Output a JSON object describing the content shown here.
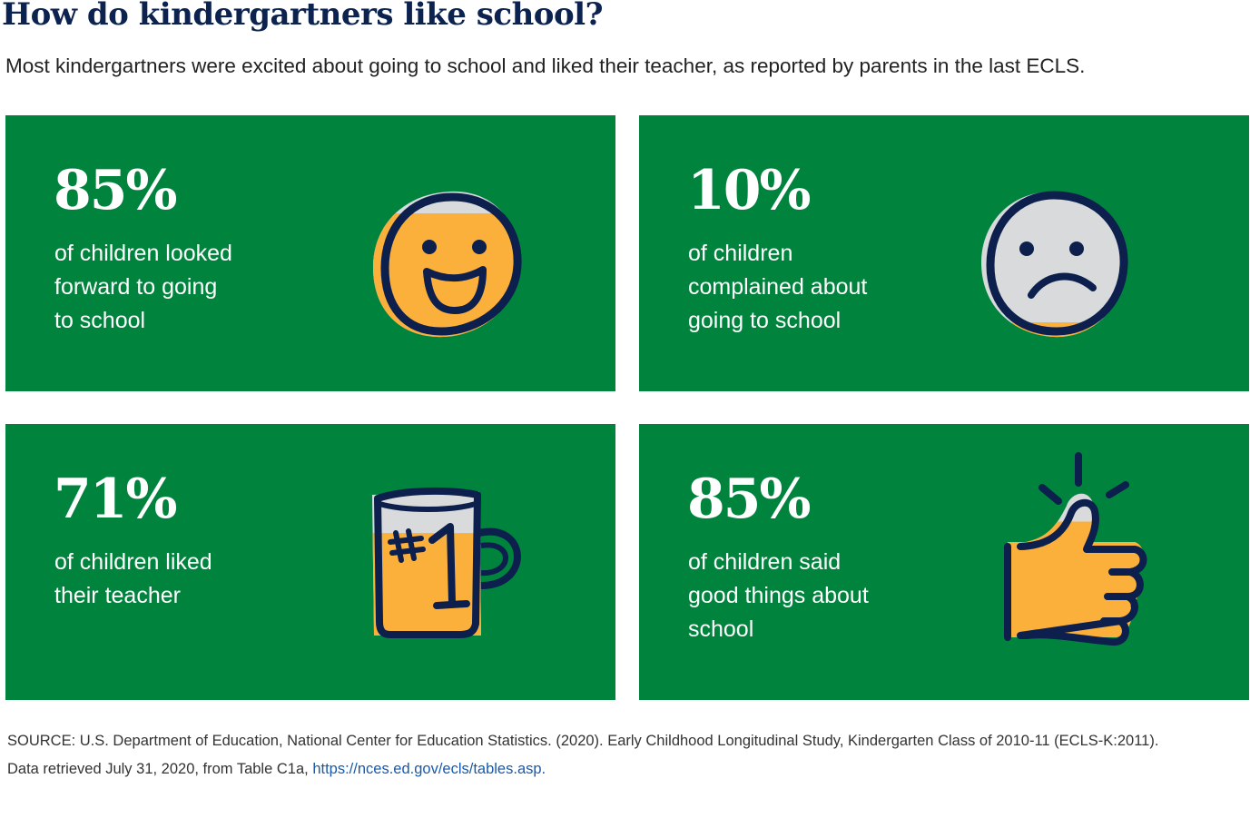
{
  "title": "How do kindergartners like school?",
  "subtitle": "Most kindergartners were excited about going to school and liked their teacher, as reported by parents in the last ECLS.",
  "colors": {
    "panel": "#00843d",
    "fill": "#fbb03b",
    "empty": "#d9dadc",
    "outline": "#0c1f4d",
    "title": "#0c2350"
  },
  "chart_data": {
    "type": "pictograph",
    "categories": [
      "of children looked forward to going to school",
      "of children complained about going to school",
      "of children liked their teacher",
      "of children said good things about school"
    ],
    "values": [
      85,
      10,
      71,
      85
    ],
    "unit": "%"
  },
  "stats": [
    {
      "value": "85%",
      "fill": 0.85,
      "icon": "smiley-face-icon",
      "lines": [
        "of children looked",
        "forward to going",
        "to school"
      ]
    },
    {
      "value": "10%",
      "fill": 0.1,
      "icon": "sad-face-icon",
      "lines": [
        "of children",
        "complained about",
        "going to school"
      ]
    },
    {
      "value": "71%",
      "fill": 0.71,
      "icon": "number-one-mug-icon",
      "lines": [
        "of children liked",
        "their teacher"
      ]
    },
    {
      "value": "85%",
      "fill": 0.85,
      "icon": "thumbs-up-icon",
      "lines": [
        "of children said",
        "good things about",
        "school"
      ]
    }
  ],
  "source": {
    "line1": "SOURCE: U.S. Department of Education, National Center for Education Statistics. (2020). Early Childhood Longitudinal Study, Kindergarten Class of 2010-11 (ECLS-K:2011).",
    "line2": "Data retrieved July 31, 2020, from Table C1a,",
    "link": "https://nces.ed.gov/ecls/tables.asp."
  }
}
